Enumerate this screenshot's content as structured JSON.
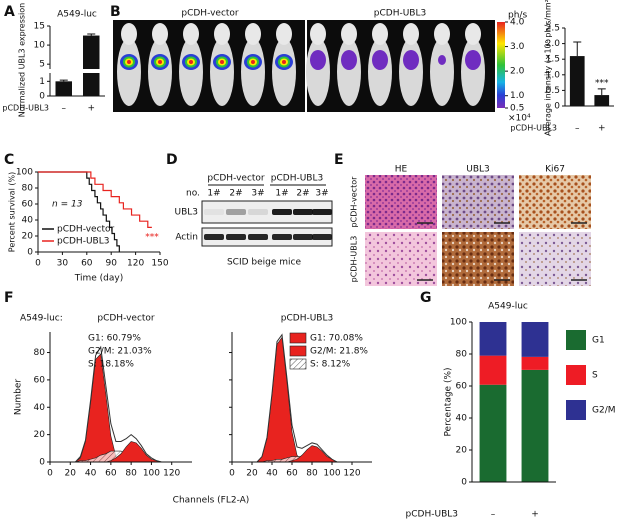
{
  "panel_labels": [
    "A",
    "B",
    "C",
    "D",
    "E",
    "F",
    "G"
  ],
  "imaging": {
    "groups": [
      "pCDH-vector",
      "pCDH-UBL3"
    ],
    "colorbar": {
      "unit": "ph/s",
      "multiplier": "×10⁴",
      "lim": [
        0.5,
        4
      ],
      "ticks": [
        {
          "value": 4,
          "label": "4.0"
        },
        {
          "value": 3,
          "label": "3.0"
        },
        {
          "value": 2,
          "label": "2.0"
        },
        {
          "value": 1,
          "label": "1.0"
        },
        0.5
      ]
    }
  },
  "blot": {
    "groups": [
      "pCDH-vector",
      "pCDH-UBL3"
    ],
    "lane_header": "no.",
    "lanes": [
      "1#",
      "2#",
      "3#",
      "1#",
      "2#",
      "3#"
    ],
    "rows": [
      "UBL3",
      "Actin"
    ],
    "caption": "SCID beige mice"
  },
  "ihc": {
    "columns": [
      "HE",
      "UBL3",
      "Ki67"
    ],
    "rows": [
      "pCDH-vector",
      "pCDH-UBL3"
    ]
  },
  "chart_data": [
    {
      "type": "bar",
      "title": "A549-luc",
      "ylabel": "Normalized UBL3 expression",
      "xlabel": "pCDH-UBL3",
      "categories": [
        "–",
        "+"
      ],
      "values": [
        1,
        12.5
      ],
      "errors": [
        0.08,
        0.4
      ],
      "color": "#111111",
      "ylim": [
        0,
        15
      ],
      "ybreak": [
        1.5,
        4
      ],
      "yticks": [
        0,
        1,
        5,
        10,
        15
      ]
    },
    {
      "type": "bar",
      "ylabel": "Average intensity (×10⁶ ph/s/mm²)",
      "xlabel": "pCDH-UBL3",
      "categories": [
        "–",
        "+"
      ],
      "values": [
        1.6,
        0.35
      ],
      "errors": [
        0.45,
        0.2
      ],
      "annotation": "***",
      "color": "#111111",
      "ylim": [
        0,
        2.5
      ],
      "yticks": [
        0,
        0.5,
        {
          "value": 1,
          "label": "1.0"
        },
        1.5,
        {
          "value": 2,
          "label": "2.0"
        },
        2.5
      ]
    },
    {
      "type": "step",
      "ylabel": "Percent survival (%)",
      "xlabel": "Time (day)",
      "note": "n = 13",
      "annotation": "***",
      "xlim": [
        0,
        150
      ],
      "xticks": [
        0,
        30,
        60,
        90,
        120,
        150
      ],
      "ylim": [
        0,
        100
      ],
      "yticks": [
        0,
        20,
        40,
        60,
        80,
        100
      ],
      "series": [
        {
          "name": "pCDH-vector",
          "color": "#111111",
          "x": [
            0,
            60,
            63,
            66,
            70,
            73,
            77,
            80,
            84,
            88,
            91,
            94,
            97,
            100
          ],
          "values": [
            100,
            92.3,
            84.6,
            76.9,
            69.2,
            61.5,
            53.8,
            46.2,
            38.5,
            30.8,
            23.1,
            15.4,
            7.7,
            0
          ]
        },
        {
          "name": "pCDH-UBL3",
          "color": "#e8231f",
          "x": [
            0,
            65,
            70,
            80,
            90,
            100,
            105,
            115,
            125,
            135,
            140
          ],
          "values": [
            100,
            92.3,
            84.6,
            76.9,
            69.2,
            61.5,
            53.8,
            46.2,
            38.5,
            30.8,
            30.8
          ]
        }
      ]
    },
    {
      "type": "area",
      "label": "A549-luc:",
      "title": "pCDH-vector",
      "ylabel": "Number",
      "xlabel": "Channels (FL2-A)",
      "legend": "text",
      "xlim": [
        0,
        140
      ],
      "xticks": [
        0,
        20,
        40,
        60,
        80,
        100,
        120
      ],
      "ylim": [
        0,
        95
      ],
      "yticks": [
        0,
        20,
        40,
        60,
        80
      ],
      "x": [
        20,
        25,
        30,
        35,
        40,
        45,
        50,
        55,
        60,
        65,
        70,
        75,
        80,
        85,
        90,
        95,
        100,
        105,
        110,
        115,
        120,
        125,
        130
      ],
      "values": [
        0,
        0,
        4,
        16,
        45,
        78,
        84,
        56,
        28,
        15,
        15,
        17,
        20,
        17,
        12,
        6,
        3,
        1,
        0,
        0,
        0,
        0,
        0
      ],
      "series": [
        {
          "name": "G1: 60.79%",
          "color": "#e8231f",
          "values": [
            0,
            0,
            3,
            15,
            43,
            75,
            79,
            50,
            19,
            4,
            1,
            0,
            0,
            0,
            0,
            0,
            0,
            0,
            0,
            0,
            0,
            0,
            0
          ]
        },
        {
          "name": "G2/M: 21.03%",
          "color": "#e8231f",
          "values": [
            0,
            0,
            0,
            0,
            0,
            0,
            0,
            0,
            1,
            3,
            6,
            11,
            15,
            14,
            10,
            5,
            2,
            1,
            0,
            0,
            0,
            0,
            0
          ]
        },
        {
          "name": "S: 18.18%",
          "color": "hatch",
          "values": [
            0,
            0,
            1,
            1,
            2,
            3,
            5,
            6,
            8,
            8,
            8,
            6,
            5,
            3,
            2,
            1,
            1,
            0,
            0,
            0,
            0,
            0,
            0
          ]
        }
      ]
    },
    {
      "type": "area",
      "title": "pCDH-UBL3",
      "legend": "swatch",
      "xlim": [
        0,
        140
      ],
      "xticks": [
        0,
        20,
        40,
        60,
        80,
        100,
        120
      ],
      "ylim": [
        0,
        95
      ],
      "yticks": [
        0,
        20,
        40,
        60,
        80
      ],
      "x": [
        20,
        25,
        30,
        35,
        40,
        45,
        50,
        55,
        60,
        65,
        70,
        75,
        80,
        85,
        90,
        95,
        100,
        105,
        110,
        115,
        120,
        125,
        130
      ],
      "values": [
        0,
        0,
        4,
        18,
        50,
        88,
        93,
        61,
        27,
        11,
        10,
        12,
        14,
        13,
        9,
        5,
        2,
        0,
        0,
        0,
        0,
        0,
        0
      ],
      "series": [
        {
          "name": "G1: 70.08%",
          "color": "#e8231f",
          "values": [
            0,
            0,
            4,
            17,
            49,
            86,
            91,
            58,
            22,
            5,
            1,
            0,
            0,
            0,
            0,
            0,
            0,
            0,
            0,
            0,
            0,
            0,
            0
          ]
        },
        {
          "name": "G2/M: 21.8%",
          "color": "#e8231f",
          "values": [
            0,
            0,
            0,
            0,
            0,
            0,
            0,
            0,
            1,
            2,
            5,
            9,
            12,
            11,
            8,
            4,
            2,
            0,
            0,
            0,
            0,
            0,
            0
          ]
        },
        {
          "name": "S: 8.12%",
          "color": "hatch",
          "values": [
            0,
            0,
            0,
            1,
            1,
            2,
            2,
            3,
            4,
            4,
            4,
            3,
            2,
            2,
            1,
            1,
            0,
            0,
            0,
            0,
            0,
            0,
            0
          ]
        }
      ]
    },
    {
      "type": "stacked_bar",
      "title": "A549-luc",
      "ylabel": "Percentage (%)",
      "xlabel": "pCDH-UBL3",
      "categories": [
        "–",
        "+"
      ],
      "ylim": [
        0,
        100
      ],
      "yticks": [
        0,
        20,
        40,
        60,
        80,
        100
      ],
      "series": [
        {
          "name": "G1",
          "color": "#1a6b30",
          "values": [
            60.79,
            70.08
          ]
        },
        {
          "name": "S",
          "color": "#ee1c25",
          "values": [
            18.18,
            8.12
          ]
        },
        {
          "name": "G2/M",
          "color": "#2e3192",
          "values": [
            21.03,
            21.8
          ]
        }
      ]
    }
  ]
}
